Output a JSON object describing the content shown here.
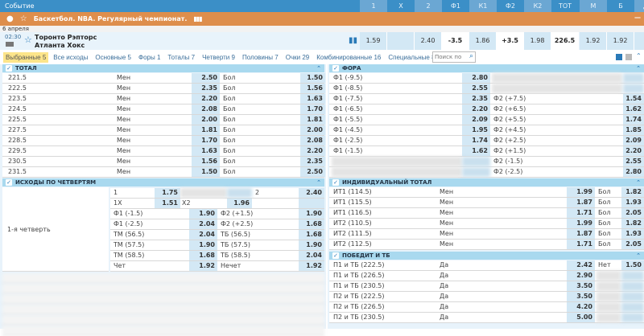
{
  "header": {
    "title": "Событие",
    "columns": [
      "1",
      "X",
      "2",
      "Ф1",
      "К1",
      "Ф2",
      "К2",
      "ТОТ",
      "М",
      "Б",
      "ДО"
    ]
  },
  "league": {
    "title": "Баскетбол. NBA. Регулярный чемпионат.",
    "icons": [
      "basketball-icon",
      "star-icon",
      "stats-icon"
    ]
  },
  "date": "6 апреля",
  "match": {
    "time": "02:30",
    "team1": "Торонто Рэпторс",
    "team2": "Атланта Хокс",
    "odds": [
      "1.59",
      "",
      "2.40",
      "-3.5",
      "1.86",
      "+3.5",
      "1.98",
      "226.5",
      "1.92",
      "1.92",
      "-7"
    ]
  },
  "tabs": [
    "Выбранные 5",
    "Все исходы",
    "Основные 5",
    "Форы 1",
    "Тоталы 7",
    "Четверти 9",
    "Половины 7",
    "Очки 29",
    "Комбинированные 16",
    "Специальные 8"
  ],
  "search": {
    "placeholder": "Поиск по ,"
  },
  "colors": {
    "header": "#3b8fc7",
    "league": "#de8e4c",
    "section": "#a9d9ef",
    "odds_cell": "#d3e8f5",
    "selected_tab": "#fde58a"
  },
  "total": {
    "title": "ТОТАЛ",
    "rows": [
      [
        "221.5",
        "Мен",
        "2.50",
        "Бол",
        "1.50"
      ],
      [
        "222.5",
        "Мен",
        "2.35",
        "Бол",
        "1.56"
      ],
      [
        "223.5",
        "Мен",
        "2.20",
        "Бол",
        "1.63"
      ],
      [
        "224.5",
        "Мен",
        "2.08",
        "Бол",
        "1.70"
      ],
      [
        "225.5",
        "Мен",
        "2.00",
        "Бол",
        "1.81"
      ],
      [
        "227.5",
        "Мен",
        "1.81",
        "Бол",
        "2.00"
      ],
      [
        "228.5",
        "Мен",
        "1.70",
        "Бол",
        "2.08"
      ],
      [
        "229.5",
        "Мен",
        "1.63",
        "Бол",
        "2.20"
      ],
      [
        "230.5",
        "Мен",
        "1.56",
        "Бол",
        "2.35"
      ],
      [
        "231.5",
        "Мен",
        "1.50",
        "Бол",
        "2.50"
      ]
    ]
  },
  "fora": {
    "title": "ФОРА",
    "rows": [
      [
        "Ф1 (-9.5)",
        "2.80",
        null,
        null
      ],
      [
        "Ф1 (-8.5)",
        "2.55",
        null,
        null
      ],
      [
        "Ф1 (-7.5)",
        "2.35",
        "Ф2 (+7.5)",
        "1.54"
      ],
      [
        "Ф1 (-6.5)",
        "2.20",
        "Ф2 (+6.5)",
        "1.62"
      ],
      [
        "Ф1 (-5.5)",
        "2.09",
        "Ф2 (+5.5)",
        "1.74"
      ],
      [
        "Ф1 (-4.5)",
        "1.95",
        "Ф2 (+4.5)",
        "1.85"
      ],
      [
        "Ф1 (-2.5)",
        "1.74",
        "Ф2 (+2.5)",
        "2.09"
      ],
      [
        "Ф1 (-1.5)",
        "1.62",
        "Ф2 (+1.5)",
        "2.20"
      ],
      [
        null,
        null,
        "Ф2 (-1.5)",
        "2.55"
      ],
      [
        null,
        null,
        "Ф2 (-2.5)",
        "2.80"
      ]
    ]
  },
  "quarters": {
    "title": "ИСХОДЫ ПО ЧЕТВЕРТЯМ",
    "period": "1-я четверть",
    "top": [
      [
        "1",
        "1.75",
        null,
        null,
        "2",
        "2.40"
      ],
      [
        "1X",
        "1.51",
        "X2",
        "1.96",
        "",
        ""
      ]
    ],
    "rows": [
      [
        "Ф1 (-1.5)",
        "1.90",
        "Ф2 (+1.5)",
        "1.90"
      ],
      [
        "Ф1 (-2.5)",
        "2.04",
        "Ф2 (+2.5)",
        "1.68"
      ],
      [
        "ТМ (56.5)",
        "2.04",
        "ТБ (56.5)",
        "1.68"
      ],
      [
        "ТМ (57.5)",
        "1.90",
        "ТБ (57.5)",
        "1.90"
      ],
      [
        "ТМ (58.5)",
        "1.68",
        "ТБ (58.5)",
        "2.04"
      ],
      [
        "Чет",
        "1.92",
        "Нечет",
        "1.92"
      ]
    ]
  },
  "ind_total": {
    "title": "ИНДИВИДУАЛЬНЫЙ ТОТАЛ",
    "rows": [
      [
        "ИТ1 (114.5)",
        "Мен",
        "1.99",
        "Бол",
        "1.82"
      ],
      [
        "ИТ1 (115.5)",
        "Мен",
        "1.87",
        "Бол",
        "1.93"
      ],
      [
        "ИТ1 (116.5)",
        "Мен",
        "1.71",
        "Бол",
        "2.05"
      ],
      [
        "ИТ2 (110.5)",
        "Мен",
        "1.99",
        "Бол",
        "1.82"
      ],
      [
        "ИТ2 (111.5)",
        "Мен",
        "1.87",
        "Бол",
        "1.93"
      ],
      [
        "ИТ2 (112.5)",
        "Мен",
        "1.71",
        "Бол",
        "2.05"
      ]
    ]
  },
  "win_tb": {
    "title": "ПОБЕДИТ И ТБ",
    "rows": [
      [
        "П1 и ТБ (222.5)",
        "Да",
        "2.42",
        "Нет",
        "1.50"
      ],
      [
        "П1 и ТБ (226.5)",
        "Да",
        "2.90",
        null,
        null
      ],
      [
        "П1 и ТБ (230.5)",
        "Да",
        "3.50",
        null,
        null
      ],
      [
        "П2 и ТБ (222.5)",
        "Да",
        "3.50",
        null,
        null
      ],
      [
        "П2 и ТБ (226.5)",
        "Да",
        "4.20",
        null,
        null
      ],
      [
        "П2 и ТБ (230.5)",
        "Да",
        "5.00",
        null,
        null
      ]
    ]
  }
}
